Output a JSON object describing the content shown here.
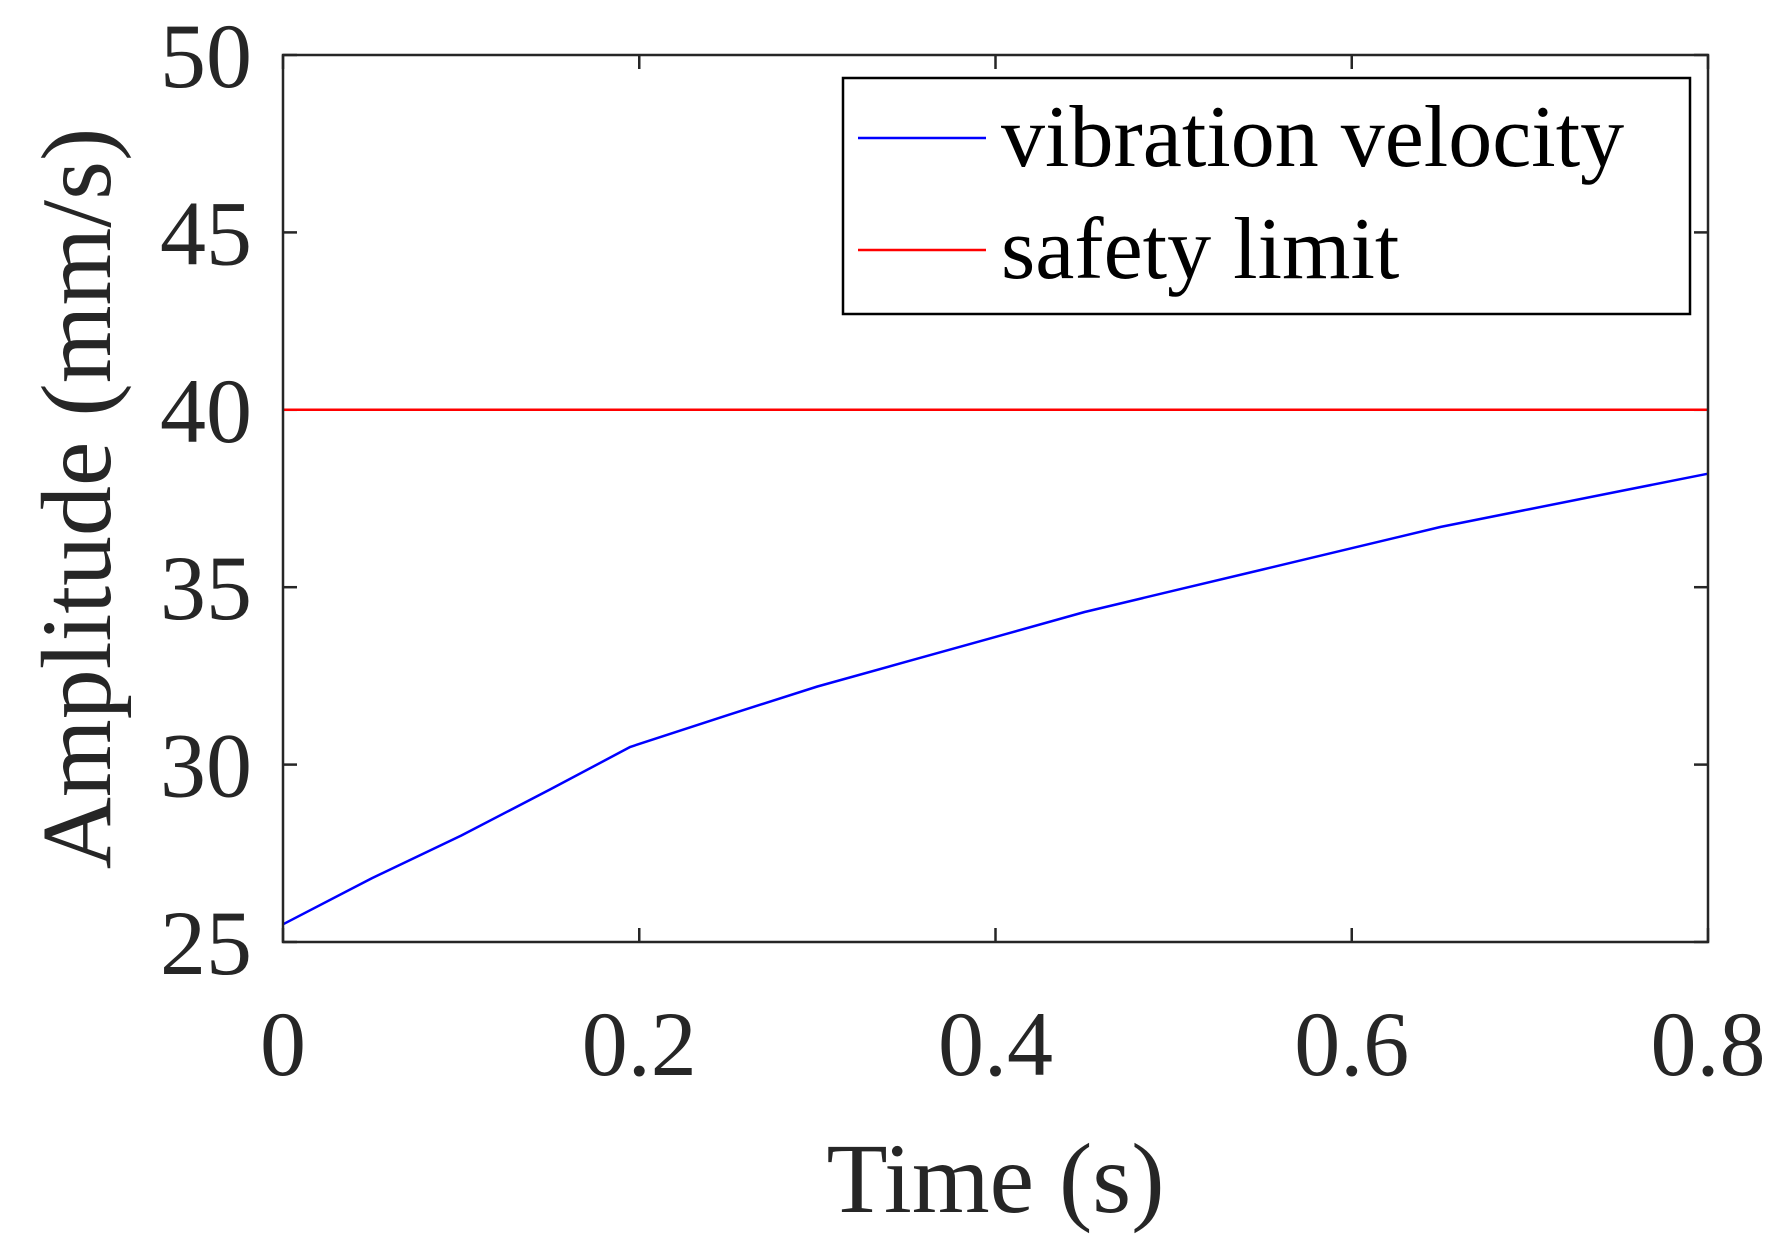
{
  "chart_data": {
    "type": "line",
    "title": "",
    "xlabel": "Time (s)",
    "ylabel": "Amplitude (mm/s)",
    "xlim": [
      0,
      0.8
    ],
    "ylim": [
      25,
      50
    ],
    "xticks": [
      0,
      0.2,
      0.4,
      0.6,
      0.8
    ],
    "xtick_labels": [
      "0",
      "0.2",
      "0.4",
      "0.6",
      "0.8"
    ],
    "yticks": [
      25,
      30,
      35,
      40,
      45,
      50
    ],
    "ytick_labels": [
      "25",
      "30",
      "35",
      "40",
      "45",
      "50"
    ],
    "grid": false,
    "legend_position": "top-right",
    "series": [
      {
        "name": "vibration velocity",
        "color": "#0000ff",
        "x": [
          0,
          0.05,
          0.1,
          0.15,
          0.195,
          0.25,
          0.3,
          0.35,
          0.4,
          0.45,
          0.5,
          0.55,
          0.6,
          0.65,
          0.7,
          0.75,
          0.8
        ],
        "y": [
          25.5,
          26.8,
          28.0,
          29.3,
          30.5,
          31.4,
          32.2,
          32.9,
          33.6,
          34.3,
          34.9,
          35.5,
          36.1,
          36.7,
          37.2,
          37.7,
          38.2
        ]
      },
      {
        "name": "safety limit",
        "color": "#ff0000",
        "x": [
          0,
          0.8
        ],
        "y": [
          40,
          40
        ]
      }
    ]
  }
}
